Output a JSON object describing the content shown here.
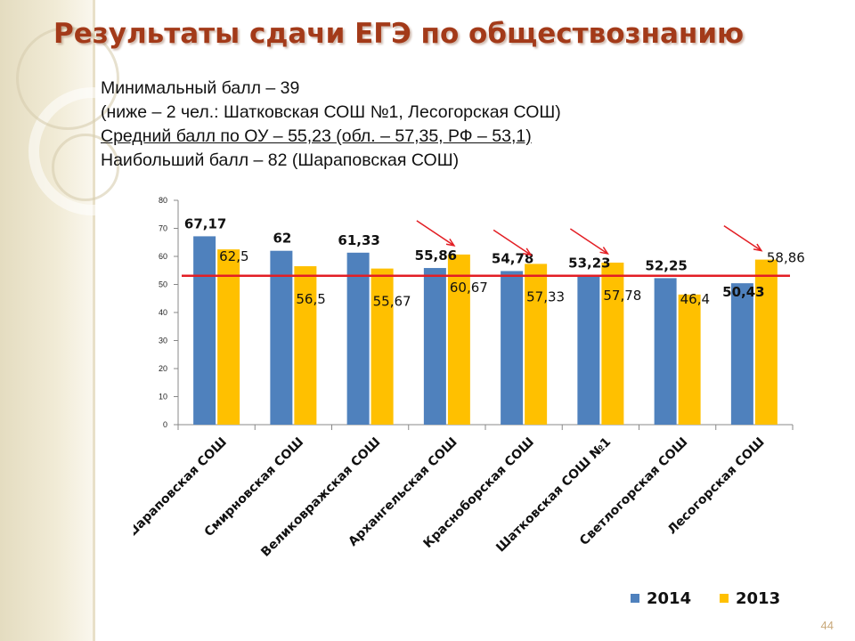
{
  "slide": {
    "title": "Результаты сдачи ЕГЭ по обществознанию",
    "info_lines": [
      "Минимальный балл – 39",
      "(ниже – 2 чел.: Шатковская СОШ №1, Лесогорская СОШ)",
      "Средний балл по ОУ – 55,23 (обл. – 57,35, РФ – 53,1)",
      "Наибольший балл – 82 (Шараповская СОШ)"
    ],
    "page_number": "44"
  },
  "colors": {
    "title": "#a33a19",
    "series_2014": "#4f81bd",
    "series_2013": "#ffc000",
    "reference_line": "#e31e24",
    "arrows": "#e31e24"
  },
  "chart_data": {
    "type": "bar",
    "title": "",
    "xlabel": "",
    "ylabel": "",
    "ylim": [
      0,
      80
    ],
    "y_ticks": [
      0,
      10,
      20,
      30,
      40,
      50,
      60,
      70,
      80
    ],
    "grid": false,
    "legend_position": "bottom-right",
    "categories": [
      "Шараповская СОШ",
      "Смирновская СОШ",
      "Великовражская СОШ",
      "Архангельская СОШ",
      "Красноборская СОШ",
      "Шатковская СОШ №1",
      "Светлогорская СОШ",
      "Лесогорская СОШ"
    ],
    "series": [
      {
        "name": "2014",
        "values": [
          67.17,
          62,
          61.33,
          55.86,
          54.78,
          53.23,
          52.25,
          50.43
        ],
        "labels": [
          "67,17",
          "62",
          "61,33",
          "55,86",
          "54,78",
          "53,23",
          "52,25",
          "50,43"
        ]
      },
      {
        "name": "2013",
        "values": [
          62.5,
          56.5,
          55.67,
          60.67,
          57.33,
          57.78,
          46.4,
          58.86
        ],
        "labels": [
          "62,5",
          "56,5",
          "55,67",
          "60,67",
          "57,33",
          "57,78",
          "46,4",
          "58,86"
        ]
      }
    ],
    "reference_line_value": 53.1,
    "arrow_categories": [
      3,
      4,
      5,
      7
    ]
  }
}
